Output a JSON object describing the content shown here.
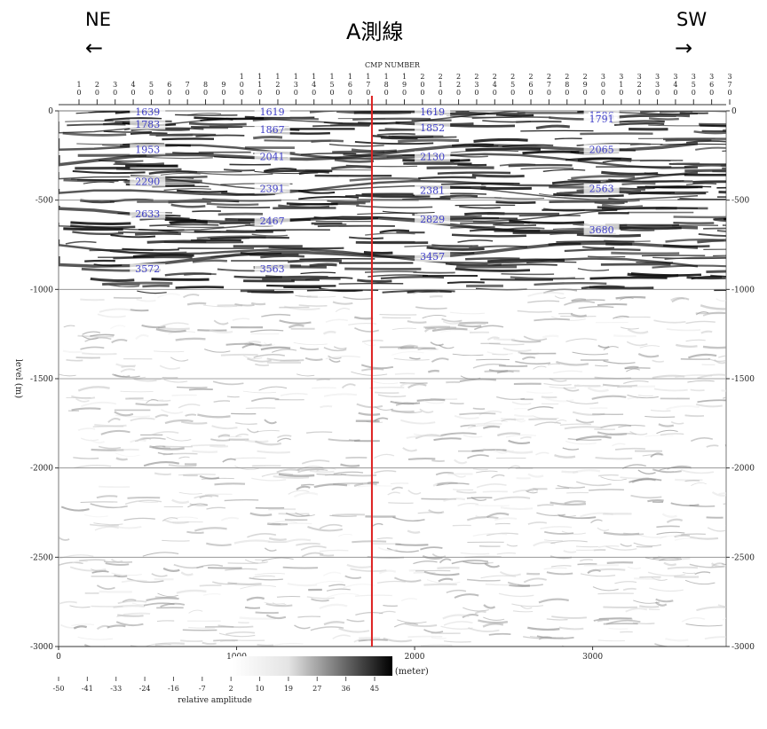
{
  "header": {
    "left_direction": "NE",
    "left_arrow": "←",
    "right_direction": "SW",
    "right_arrow": "→",
    "line_title": "A測線"
  },
  "chart_data": {
    "type": "heatmap",
    "title": "CMP NUMBER",
    "xlabel": "location (meter)",
    "ylabel": "level (m)",
    "xlim": [
      0,
      3750
    ],
    "ylim": [
      -3000,
      0
    ],
    "x_ticks": [
      0,
      1000,
      2000,
      3000
    ],
    "y_ticks": [
      0,
      -500,
      -1000,
      -1500,
      -2000,
      -2500,
      -3000
    ],
    "y_tick_labels": [
      "0",
      "-500",
      "-1000",
      "-1500",
      "-2000",
      "-2500",
      "-3000"
    ],
    "grid": true,
    "cmp_labels": [
      "10",
      "20",
      "30",
      "40",
      "50",
      "60",
      "70",
      "80",
      "90",
      "100",
      "110",
      "120",
      "130",
      "140",
      "150",
      "160",
      "170",
      "180",
      "190",
      "200",
      "210",
      "220",
      "230",
      "240",
      "250",
      "260",
      "270",
      "280",
      "290",
      "300",
      "310",
      "320",
      "330",
      "340",
      "350",
      "360",
      "370"
    ],
    "marker_line": {
      "location": 1760,
      "color": "#dd2020"
    },
    "velocity_labels": [
      {
        "x": 500,
        "y": 0,
        "value": "1639"
      },
      {
        "x": 500,
        "y": -70,
        "value": "1783"
      },
      {
        "x": 500,
        "y": -210,
        "value": "1953"
      },
      {
        "x": 500,
        "y": -390,
        "value": "2290"
      },
      {
        "x": 500,
        "y": -570,
        "value": "2633"
      },
      {
        "x": 500,
        "y": -880,
        "value": "3572"
      },
      {
        "x": 1200,
        "y": 0,
        "value": "1619"
      },
      {
        "x": 1200,
        "y": -100,
        "value": "1867"
      },
      {
        "x": 1200,
        "y": -250,
        "value": "2041"
      },
      {
        "x": 1200,
        "y": -430,
        "value": "2391"
      },
      {
        "x": 1200,
        "y": -610,
        "value": "2467"
      },
      {
        "x": 1200,
        "y": -880,
        "value": "3563"
      },
      {
        "x": 2100,
        "y": 0,
        "value": "1619"
      },
      {
        "x": 2100,
        "y": -90,
        "value": "1852"
      },
      {
        "x": 2100,
        "y": -250,
        "value": "2130"
      },
      {
        "x": 2100,
        "y": -440,
        "value": "2381"
      },
      {
        "x": 2100,
        "y": -600,
        "value": "2829"
      },
      {
        "x": 2100,
        "y": -810,
        "value": "3457"
      },
      {
        "x": 3050,
        "y": -20,
        "value": "1586"
      },
      {
        "x": 3050,
        "y": -40,
        "value": "1791"
      },
      {
        "x": 3050,
        "y": -210,
        "value": "2065"
      },
      {
        "x": 3050,
        "y": -430,
        "value": "2563"
      },
      {
        "x": 3050,
        "y": -660,
        "value": "3680"
      }
    ],
    "colorbar": {
      "label": "relative amplitude",
      "ticks": [
        "-50",
        "-41",
        "-33",
        "-24",
        "-16",
        "-7",
        "2",
        "10",
        "19",
        "27",
        "36",
        "45"
      ],
      "colors": [
        "#ffffff",
        "#000000"
      ]
    }
  }
}
